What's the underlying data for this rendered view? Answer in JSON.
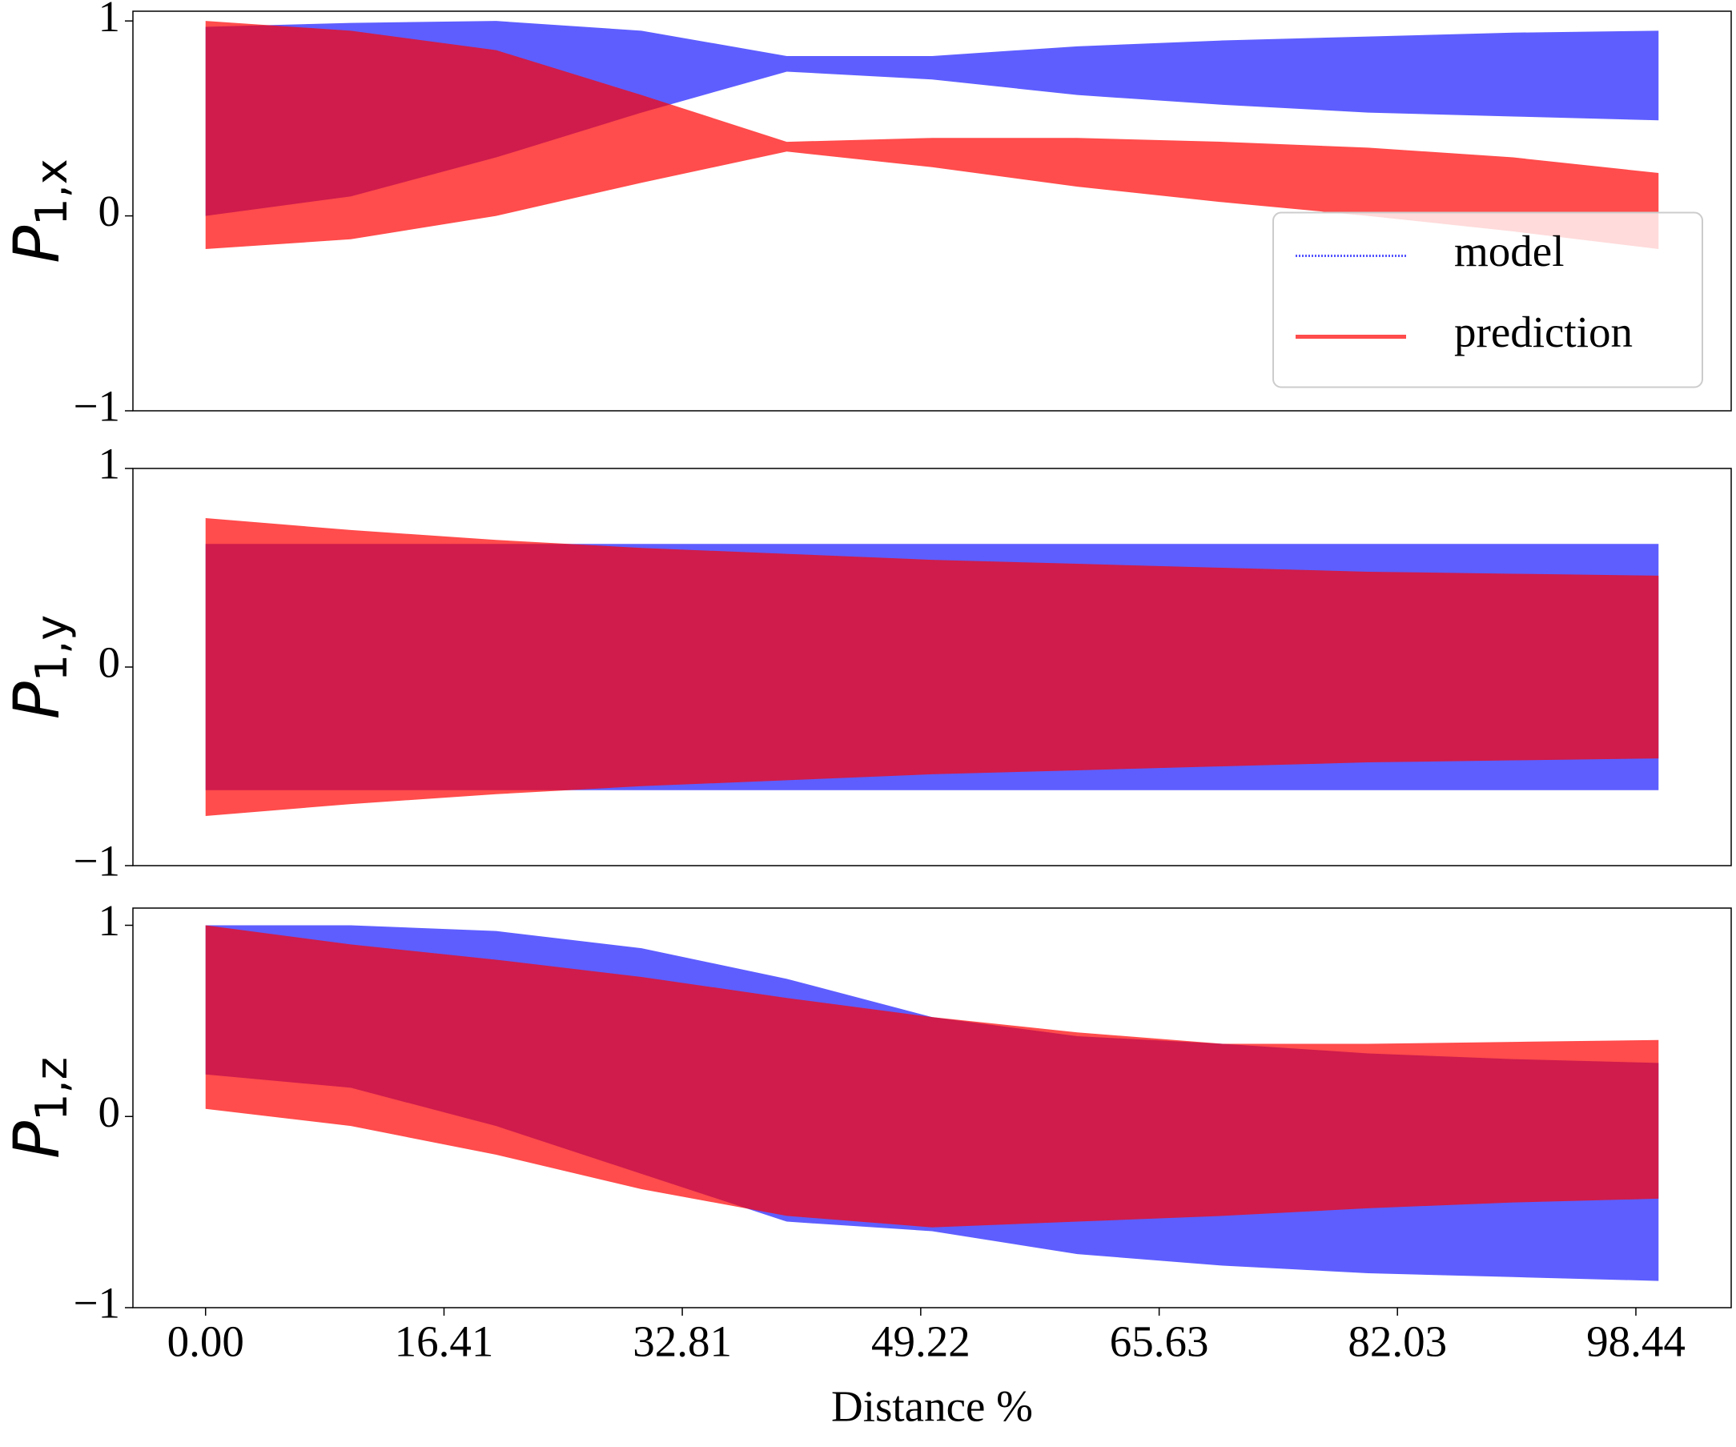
{
  "chart_data": [
    {
      "type": "band",
      "ylabel": {
        "symbol": "P",
        "subscript": "1,x"
      },
      "x": [
        0,
        10,
        20,
        30,
        40,
        50,
        60,
        70,
        80,
        90,
        100
      ],
      "series": [
        {
          "name": "model",
          "color": "#5555ff",
          "style": "dotted",
          "upper": [
            0.97,
            0.99,
            1.0,
            0.95,
            0.82,
            0.82,
            0.87,
            0.9,
            0.92,
            0.94,
            0.95
          ],
          "lower": [
            0.0,
            0.1,
            0.3,
            0.53,
            0.74,
            0.7,
            0.62,
            0.57,
            0.53,
            0.51,
            0.49
          ]
        },
        {
          "name": "prediction",
          "color": "#ff0000",
          "style": "solid",
          "upper": [
            1.0,
            0.95,
            0.85,
            0.62,
            0.38,
            0.4,
            0.4,
            0.38,
            0.35,
            0.3,
            0.22
          ],
          "lower": [
            -0.17,
            -0.12,
            0.0,
            0.17,
            0.33,
            0.25,
            0.15,
            0.07,
            0.0,
            -0.08,
            -0.17
          ]
        }
      ],
      "xlim": [
        -5,
        105
      ],
      "ylim": [
        -1,
        1.05
      ],
      "yticks": [
        {
          "value": -1,
          "label": "−1"
        },
        0,
        1
      ],
      "legend": "center right"
    },
    {
      "type": "band",
      "ylabel": {
        "symbol": "P",
        "subscript": "1,y"
      },
      "x": [
        0,
        10,
        20,
        30,
        40,
        50,
        60,
        70,
        80,
        90,
        100
      ],
      "series": [
        {
          "name": "model",
          "color": "#5555ff",
          "style": "dotted",
          "upper": [
            0.62,
            0.62,
            0.62,
            0.62,
            0.62,
            0.62,
            0.62,
            0.62,
            0.62,
            0.62,
            0.62
          ],
          "lower": [
            -0.62,
            -0.62,
            -0.62,
            -0.62,
            -0.62,
            -0.62,
            -0.62,
            -0.62,
            -0.62,
            -0.62,
            -0.62
          ]
        },
        {
          "name": "prediction",
          "color": "#ff0000",
          "style": "solid",
          "upper": [
            0.75,
            0.69,
            0.64,
            0.6,
            0.57,
            0.54,
            0.52,
            0.5,
            0.48,
            0.47,
            0.46
          ],
          "lower": [
            -0.75,
            -0.69,
            -0.64,
            -0.6,
            -0.57,
            -0.54,
            -0.52,
            -0.5,
            -0.48,
            -0.47,
            -0.46
          ]
        }
      ],
      "xlim": [
        -5,
        105
      ],
      "ylim": [
        -1,
        1
      ],
      "yticks": [
        {
          "value": -1,
          "label": "−1"
        },
        0,
        1
      ]
    },
    {
      "type": "band",
      "ylabel": {
        "symbol": "P",
        "subscript": "1,z"
      },
      "xlabel": "Distance %",
      "x": [
        0,
        10,
        20,
        30,
        40,
        50,
        60,
        70,
        80,
        90,
        100
      ],
      "series": [
        {
          "name": "model",
          "color": "#5555ff",
          "style": "dotted",
          "upper": [
            1.0,
            1.0,
            0.97,
            0.88,
            0.72,
            0.52,
            0.42,
            0.38,
            0.33,
            0.3,
            0.28
          ],
          "lower": [
            0.22,
            0.15,
            -0.05,
            -0.3,
            -0.55,
            -0.6,
            -0.72,
            -0.78,
            -0.82,
            -0.84,
            -0.86
          ]
        },
        {
          "name": "prediction",
          "color": "#ff0000",
          "style": "solid",
          "upper": [
            1.0,
            0.9,
            0.82,
            0.73,
            0.62,
            0.52,
            0.44,
            0.38,
            0.38,
            0.39,
            0.4
          ],
          "lower": [
            0.04,
            -0.05,
            -0.2,
            -0.38,
            -0.52,
            -0.58,
            -0.55,
            -0.52,
            -0.48,
            -0.45,
            -0.43
          ]
        }
      ],
      "xlim": [
        -5,
        105
      ],
      "ylim": [
        -1,
        1.09
      ],
      "xticks": [
        {
          "value": 0,
          "label": "0.00"
        },
        {
          "value": 16.41,
          "label": "16.41"
        },
        {
          "value": 32.81,
          "label": "32.81"
        },
        {
          "value": 49.22,
          "label": "49.22"
        },
        {
          "value": 65.63,
          "label": "65.63"
        },
        {
          "value": 82.03,
          "label": "82.03"
        },
        {
          "value": 98.44,
          "label": "98.44"
        }
      ],
      "yticks": [
        {
          "value": -1,
          "label": "−1"
        },
        0,
        1
      ]
    }
  ]
}
